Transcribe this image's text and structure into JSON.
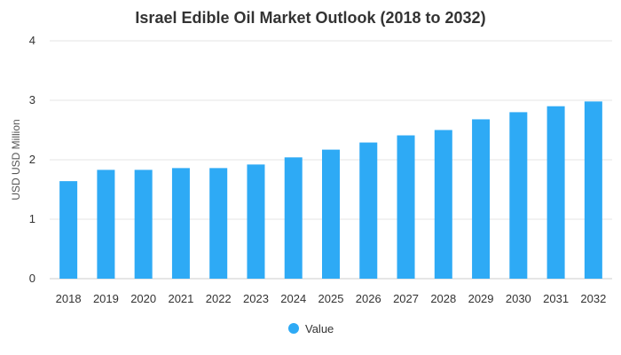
{
  "chart_data": {
    "type": "bar",
    "title": "Israel Edible Oil Market Outlook (2018 to 2032)",
    "xlabel": "",
    "ylabel": "USD USD Million",
    "ylim": [
      0,
      4
    ],
    "yticks": [
      "0",
      "1",
      "2",
      "3",
      "4"
    ],
    "categories": [
      "2018",
      "2019",
      "2020",
      "2021",
      "2022",
      "2023",
      "2024",
      "2025",
      "2026",
      "2027",
      "2028",
      "2029",
      "2030",
      "2031",
      "2032"
    ],
    "series": [
      {
        "name": "Value",
        "color": "#2eaaf5",
        "values": [
          1.64,
          1.83,
          1.83,
          1.86,
          1.86,
          1.92,
          2.04,
          2.17,
          2.29,
          2.41,
          2.5,
          2.68,
          2.8,
          2.9,
          2.98
        ]
      }
    ],
    "grid": true,
    "legend_position": "bottom-center"
  }
}
